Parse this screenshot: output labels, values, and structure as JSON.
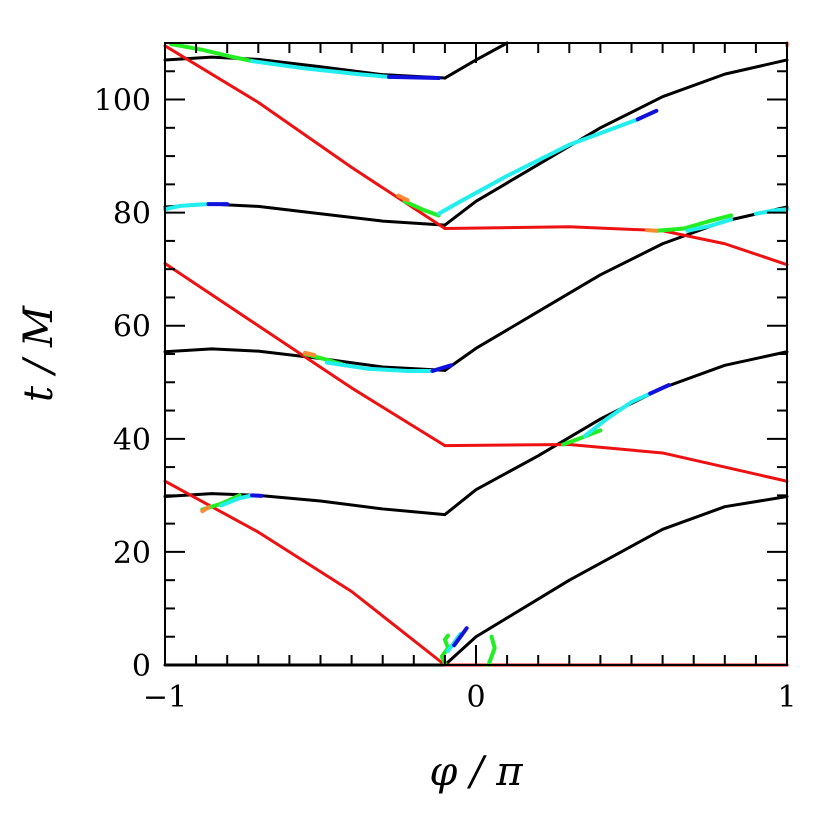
{
  "chart_data": {
    "type": "line",
    "title": "",
    "xlabel": "φ / π",
    "ylabel": "t / M",
    "xlim": [
      -1,
      1
    ],
    "ylim": [
      0,
      110
    ],
    "x_ticks": [
      "−1",
      "0",
      "1"
    ],
    "y_ticks": [
      "0",
      "20",
      "40",
      "60",
      "80",
      "100"
    ],
    "x_tick_values": [
      -1,
      0,
      1
    ],
    "y_tick_values": [
      0,
      20,
      40,
      60,
      80,
      100
    ],
    "grid": false,
    "colors": {
      "black": "#000000",
      "red": "#ee1111",
      "green": "#22ee22",
      "cyan": "#22eeee",
      "blue": "#1111dd",
      "orange": "#ff8833"
    },
    "series": [
      {
        "color": "black",
        "x": [
          -0.1,
          0.0,
          0.3,
          0.6,
          0.8,
          1.0
        ],
        "y": [
          0.0,
          5.0,
          15.0,
          24.0,
          28.0,
          29.8
        ]
      },
      {
        "color": "black",
        "x": [
          -1.0,
          -0.85,
          -0.7,
          -0.5,
          -0.3,
          -0.1
        ],
        "y": [
          29.8,
          30.3,
          30.0,
          29.0,
          27.6,
          26.6
        ]
      },
      {
        "color": "black",
        "x": [
          -0.1,
          0.0,
          0.2,
          0.4,
          0.6,
          0.8,
          1.0
        ],
        "y": [
          26.6,
          31.0,
          37.0,
          43.5,
          49.0,
          53.0,
          55.4
        ]
      },
      {
        "color": "black",
        "x": [
          -1.0,
          -0.85,
          -0.7,
          -0.5,
          -0.3,
          -0.1
        ],
        "y": [
          55.4,
          55.9,
          55.5,
          54.2,
          52.7,
          52.1
        ]
      },
      {
        "color": "black",
        "x": [
          -0.1,
          0.0,
          0.2,
          0.4,
          0.6,
          0.8,
          1.0
        ],
        "y": [
          52.1,
          56.0,
          62.5,
          69.0,
          74.5,
          78.5,
          81.0
        ]
      },
      {
        "color": "black",
        "x": [
          -1.0,
          -0.85,
          -0.7,
          -0.5,
          -0.3,
          -0.1
        ],
        "y": [
          81.0,
          81.5,
          81.1,
          79.8,
          78.5,
          77.8
        ]
      },
      {
        "color": "black",
        "x": [
          -0.1,
          0.0,
          0.2,
          0.4,
          0.6,
          0.8,
          1.0
        ],
        "y": [
          77.8,
          82.0,
          88.5,
          95.0,
          100.5,
          104.5,
          107.0
        ]
      },
      {
        "color": "black",
        "x": [
          -1.0,
          -0.85,
          -0.7,
          -0.5,
          -0.3,
          -0.1
        ],
        "y": [
          107.0,
          107.5,
          107.1,
          105.8,
          104.4,
          103.8
        ]
      },
      {
        "color": "black",
        "x": [
          -0.1,
          0.0,
          0.1
        ],
        "y": [
          103.8,
          107.0,
          110.0
        ]
      },
      {
        "color": "black",
        "x": [
          -1.0,
          1.0
        ],
        "y": [
          0.0,
          0.0
        ]
      },
      {
        "color": "red",
        "x": [
          -1.0,
          -0.7,
          -0.4,
          -0.1
        ],
        "y": [
          32.5,
          23.5,
          13.0,
          0.0
        ]
      },
      {
        "color": "red",
        "x": [
          -0.1,
          1.0
        ],
        "y": [
          0.0,
          0.0
        ]
      },
      {
        "color": "red",
        "x": [
          -1.0,
          -0.7,
          -0.4,
          -0.1
        ],
        "y": [
          71.0,
          60.0,
          49.0,
          38.8
        ]
      },
      {
        "color": "red",
        "x": [
          -0.1,
          0.3,
          0.6,
          0.8,
          1.0
        ],
        "y": [
          38.8,
          39.0,
          37.5,
          35.0,
          32.5
        ]
      },
      {
        "color": "red",
        "x": [
          -1.0,
          -0.7,
          -0.4,
          -0.1
        ],
        "y": [
          109.5,
          99.5,
          88.0,
          77.2
        ]
      },
      {
        "color": "red",
        "x": [
          -0.1,
          0.3,
          0.6,
          0.8,
          1.0
        ],
        "y": [
          77.2,
          77.5,
          76.8,
          74.5,
          70.8
        ]
      },
      {
        "color": "red",
        "x": [
          1.0,
          1.0
        ],
        "y": [
          109.5,
          110.0
        ]
      }
    ],
    "highlights": [
      {
        "color": "green",
        "x": [
          -0.88,
          -0.82,
          -0.76
        ],
        "y": [
          27.5,
          28.5,
          30.0
        ]
      },
      {
        "color": "cyan",
        "x": [
          -0.82,
          -0.76,
          -0.72
        ],
        "y": [
          28.2,
          29.5,
          30.0
        ]
      },
      {
        "color": "blue",
        "x": [
          -0.72,
          -0.69
        ],
        "y": [
          30.0,
          29.9
        ]
      },
      {
        "color": "orange",
        "x": [
          -0.88,
          -0.86
        ],
        "y": [
          27.2,
          27.9
        ]
      },
      {
        "color": "green",
        "x": [
          -0.1,
          -0.11,
          -0.09,
          -0.1,
          -0.09
        ],
        "y": [
          0.3,
          1.5,
          3.0,
          4.5,
          5.2
        ]
      },
      {
        "color": "cyan",
        "x": [
          -0.09,
          -0.07,
          -0.05
        ],
        "y": [
          2.5,
          4.0,
          5.5
        ]
      },
      {
        "color": "blue",
        "x": [
          -0.07,
          -0.05,
          -0.03
        ],
        "y": [
          3.5,
          5.0,
          6.5
        ]
      },
      {
        "color": "green",
        "x": [
          0.04,
          0.05,
          0.06,
          0.05
        ],
        "y": [
          0.0,
          1.5,
          3.0,
          5.0
        ]
      },
      {
        "color": "green",
        "x": [
          -0.55,
          -0.48,
          -0.42
        ],
        "y": [
          55.0,
          54.0,
          53.0
        ]
      },
      {
        "color": "cyan",
        "x": [
          -0.48,
          -0.35,
          -0.22,
          -0.14
        ],
        "y": [
          53.5,
          52.4,
          52.0,
          52.0
        ]
      },
      {
        "color": "blue",
        "x": [
          -0.14,
          -0.08
        ],
        "y": [
          52.0,
          53.0
        ]
      },
      {
        "color": "orange",
        "x": [
          -0.55,
          -0.52
        ],
        "y": [
          55.2,
          54.8
        ]
      },
      {
        "color": "green",
        "x": [
          0.28,
          0.33,
          0.4
        ],
        "y": [
          39.0,
          40.0,
          41.5
        ]
      },
      {
        "color": "cyan",
        "x": [
          0.35,
          0.42,
          0.5,
          0.56
        ],
        "y": [
          40.5,
          43.5,
          46.5,
          48.0
        ]
      },
      {
        "color": "blue",
        "x": [
          0.56,
          0.62
        ],
        "y": [
          48.0,
          49.5
        ]
      },
      {
        "color": "green",
        "x": [
          -0.23,
          -0.17,
          -0.12
        ],
        "y": [
          82.0,
          80.5,
          79.5
        ]
      },
      {
        "color": "cyan",
        "x": [
          -0.12,
          -0.05,
          0.1,
          0.3,
          0.52
        ],
        "y": [
          79.8,
          82.0,
          86.5,
          92.0,
          96.5
        ]
      },
      {
        "color": "blue",
        "x": [
          0.52,
          0.58
        ],
        "y": [
          96.5,
          98.0
        ]
      },
      {
        "color": "orange",
        "x": [
          -0.25,
          -0.22
        ],
        "y": [
          83.0,
          82.2
        ]
      },
      {
        "color": "green",
        "x": [
          0.58,
          0.67,
          0.75,
          0.82
        ],
        "y": [
          76.8,
          77.2,
          78.5,
          79.5
        ]
      },
      {
        "color": "cyan",
        "x": [
          0.68,
          0.75,
          0.82
        ],
        "y": [
          76.8,
          77.6,
          78.8
        ]
      },
      {
        "color": "cyan",
        "x": [
          0.9,
          0.96,
          1.0
        ],
        "y": [
          79.8,
          80.4,
          80.6
        ]
      },
      {
        "color": "cyan",
        "x": [
          -1.0,
          -0.95,
          -0.9,
          -0.86
        ],
        "y": [
          80.6,
          81.2,
          81.4,
          81.5
        ]
      },
      {
        "color": "blue",
        "x": [
          -0.86,
          -0.8
        ],
        "y": [
          81.5,
          81.5
        ]
      },
      {
        "color": "orange",
        "x": [
          0.55,
          0.58
        ],
        "y": [
          76.9,
          76.8
        ]
      },
      {
        "color": "green",
        "x": [
          -0.98,
          -0.88,
          -0.78,
          -0.72
        ],
        "y": [
          109.8,
          108.8,
          107.5,
          106.8
        ]
      },
      {
        "color": "cyan",
        "x": [
          -0.72,
          -0.55,
          -0.38,
          -0.28
        ],
        "y": [
          106.8,
          105.5,
          104.5,
          104.0
        ]
      },
      {
        "color": "blue",
        "x": [
          -0.28,
          -0.12
        ],
        "y": [
          104.0,
          103.8
        ]
      }
    ]
  }
}
